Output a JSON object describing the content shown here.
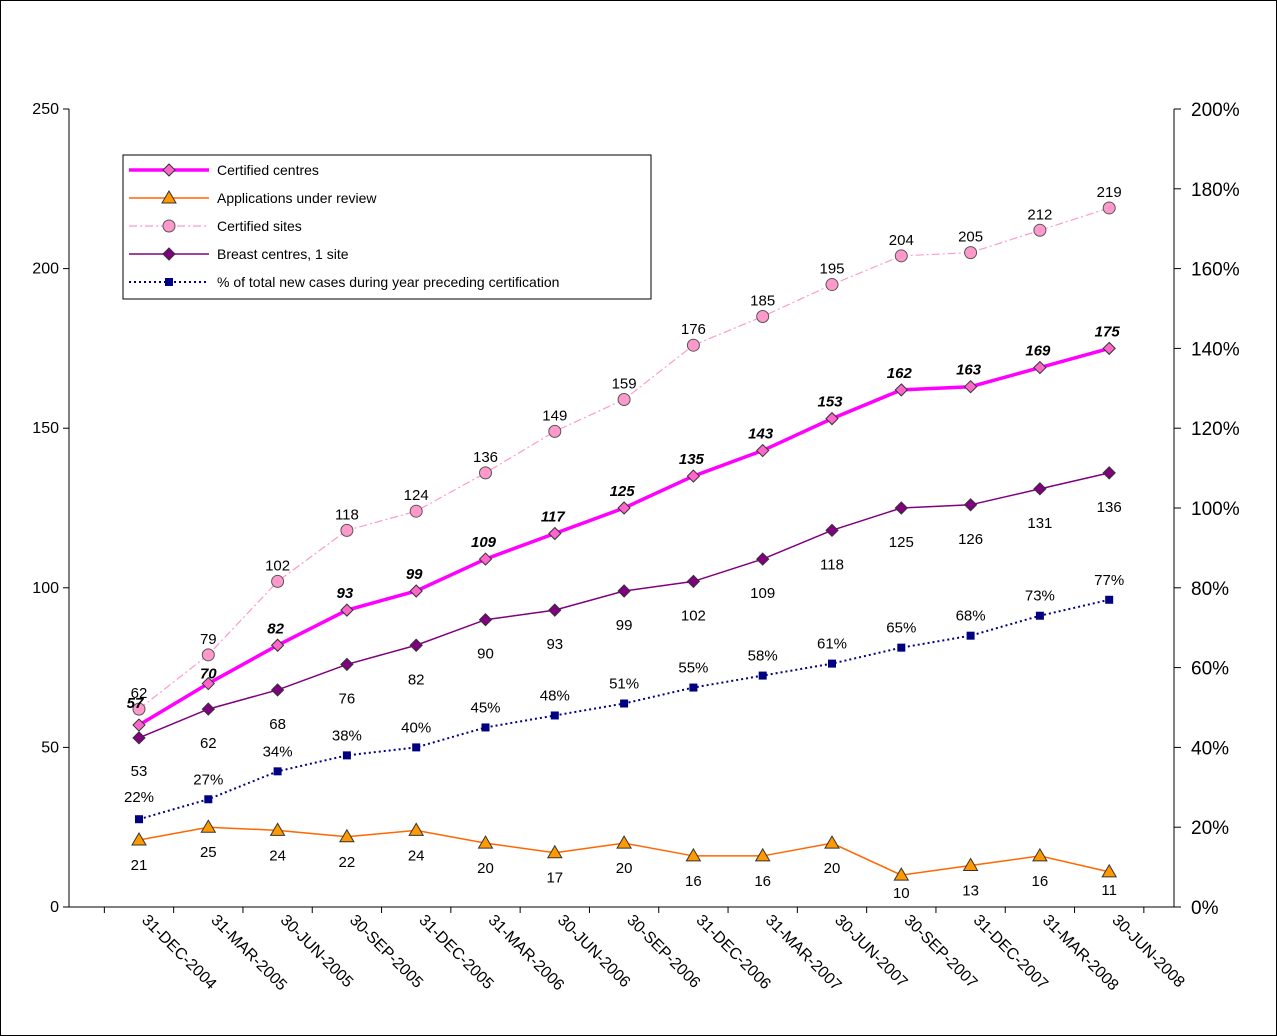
{
  "chart_data": {
    "type": "line",
    "categories": [
      "31-DEC-2004",
      "31-MAR-2005",
      "30-JUN-2005",
      "30-SEP-2005",
      "31-DEC-2005",
      "31-MAR-2006",
      "30-JUN-2006",
      "30-SEP-2006",
      "31-DEC-2006",
      "31-MAR-2007",
      "30-JUN-2007",
      "30-SEP-2007",
      "31-DEC-2007",
      "31-MAR-2008",
      "30-JUN-2008"
    ],
    "y_left": {
      "min": 0,
      "max": 250,
      "ticks": [
        "0",
        "50",
        "100",
        "150",
        "200",
        "250"
      ]
    },
    "y_right": {
      "min": 0,
      "max": 200,
      "ticks": [
        "0%",
        "20%",
        "40%",
        "60%",
        "80%",
        "100%",
        "120%",
        "140%",
        "160%",
        "180%",
        "200%"
      ]
    },
    "legend_position": "top-left",
    "series": [
      {
        "name": "Certified centres",
        "axis": "left",
        "color": "#ff00ff",
        "marker": "diamond",
        "values": [
          57,
          70,
          82,
          93,
          99,
          109,
          117,
          125,
          135,
          143,
          153,
          162,
          163,
          169,
          175
        ],
        "labels": [
          "57",
          "70",
          "82",
          "93",
          "99",
          "109",
          "117",
          "125",
          "135",
          "143",
          "153",
          "162",
          "163",
          "169",
          "175"
        ]
      },
      {
        "name": "Applications under review",
        "axis": "left",
        "color": "#ff6600",
        "marker": "triangle",
        "values": [
          21,
          25,
          24,
          22,
          24,
          20,
          17,
          20,
          16,
          16,
          20,
          10,
          13,
          16,
          11
        ],
        "labels": [
          "21",
          "25",
          "24",
          "22",
          "24",
          "20",
          "17",
          "20",
          "16",
          "16",
          "20",
          "10",
          "13",
          "16",
          "11"
        ]
      },
      {
        "name": "Certified sites",
        "axis": "left",
        "color": "#ff99cc",
        "marker": "circle",
        "values": [
          62,
          79,
          102,
          118,
          124,
          136,
          149,
          159,
          176,
          185,
          195,
          204,
          205,
          212,
          219
        ],
        "labels": [
          "62",
          "79",
          "102",
          "118",
          "124",
          "136",
          "149",
          "159",
          "176",
          "185",
          "195",
          "204",
          "205",
          "212",
          "219"
        ]
      },
      {
        "name": "Breast centres, 1 site",
        "axis": "left",
        "color": "#800080",
        "marker": "diamond",
        "values": [
          53,
          62,
          68,
          76,
          82,
          90,
          93,
          99,
          102,
          109,
          118,
          125,
          126,
          131,
          136
        ],
        "labels": [
          "53",
          "62",
          "68",
          "76",
          "82",
          "90",
          "93",
          "99",
          "102",
          "109",
          "118",
          "125",
          "126",
          "131",
          "136"
        ]
      },
      {
        "name": "% of total new cases during year preceding certification",
        "axis": "right",
        "color": "#000080",
        "marker": "square",
        "values": [
          22,
          27,
          34,
          38,
          40,
          45,
          48,
          51,
          55,
          58,
          61,
          65,
          68,
          73,
          77
        ],
        "labels": [
          "22%",
          "27%",
          "34%",
          "38%",
          "40%",
          "45%",
          "48%",
          "51%",
          "55%",
          "58%",
          "61%",
          "65%",
          "68%",
          "73%",
          "77%"
        ]
      }
    ]
  }
}
